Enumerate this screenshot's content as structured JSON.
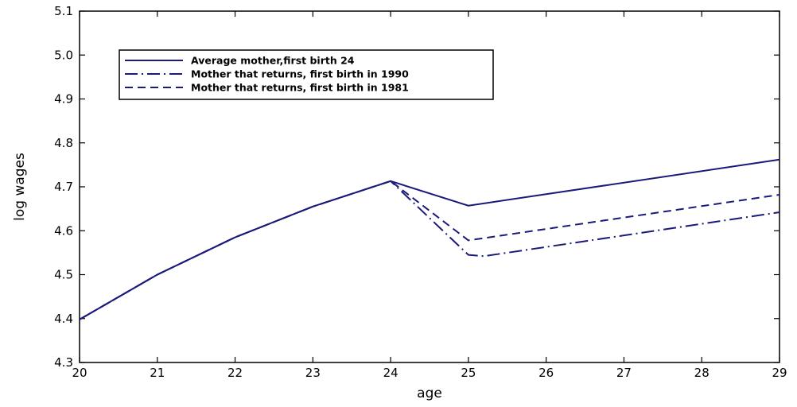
{
  "chart_data": {
    "type": "line",
    "title": "",
    "xlabel": "age",
    "ylabel": "log wages",
    "xlim": [
      20,
      29
    ],
    "ylim": [
      4.3,
      5.1
    ],
    "xticks": [
      "20",
      "21",
      "22",
      "23",
      "24",
      "25",
      "26",
      "27",
      "28",
      "29"
    ],
    "yticks": [
      "4.3",
      "4.4",
      "4.5",
      "4.6",
      "4.7",
      "4.8",
      "4.9",
      "5.0",
      "5.1"
    ],
    "grid": false,
    "legend_position": "top-left",
    "line_color": "#1a1a7a",
    "series": [
      {
        "name": "Average mother,first birth 24",
        "style": "solid",
        "x": [
          20,
          21,
          22,
          23,
          24,
          25,
          29
        ],
        "y": [
          4.398,
          4.5,
          4.585,
          4.655,
          4.713,
          4.657,
          4.762
        ]
      },
      {
        "name": "Mother that returns, first birth in 1990",
        "style": "dashdot",
        "x": [
          20,
          21,
          22,
          23,
          24,
          25,
          25.2,
          29
        ],
        "y": [
          4.398,
          4.5,
          4.585,
          4.655,
          4.713,
          4.545,
          4.542,
          4.642
        ]
      },
      {
        "name": "Mother that returns, first birth in 1981",
        "style": "dashed",
        "x": [
          20,
          21,
          22,
          23,
          24,
          25,
          29
        ],
        "y": [
          4.398,
          4.5,
          4.585,
          4.655,
          4.713,
          4.578,
          4.682
        ]
      }
    ]
  }
}
